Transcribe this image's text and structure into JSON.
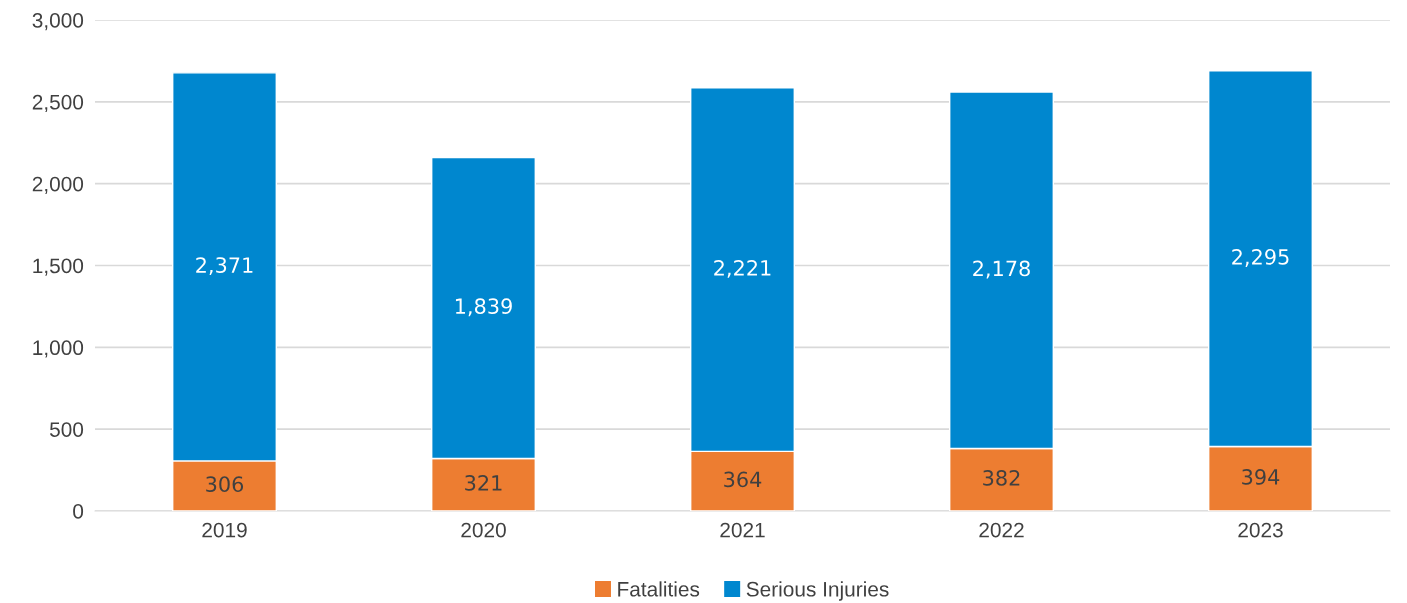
{
  "chart_data": {
    "type": "bar",
    "stacked": true,
    "categories": [
      "2019",
      "2020",
      "2021",
      "2022",
      "2023"
    ],
    "series": [
      {
        "name": "Fatalities",
        "color": "#ed7d31",
        "values": [
          306,
          321,
          364,
          382,
          394
        ],
        "value_labels": [
          "306",
          "321",
          "364",
          "382",
          "394"
        ]
      },
      {
        "name": "Serious Injuries",
        "color": "#0087cf",
        "values": [
          2371,
          1839,
          2221,
          2178,
          2295
        ],
        "value_labels": [
          "2,371",
          "1,839",
          "2,221",
          "2,178",
          "2,295"
        ]
      }
    ],
    "ylim": [
      0,
      3000
    ],
    "yticks": [
      {
        "value": 0,
        "label": "0"
      },
      {
        "value": 500,
        "label": "500"
      },
      {
        "value": 1000,
        "label": "1,000"
      },
      {
        "value": 1500,
        "label": "1,500"
      },
      {
        "value": 2000,
        "label": "2,000"
      },
      {
        "value": 2500,
        "label": "2,500"
      },
      {
        "value": 3000,
        "label": "3,000"
      }
    ],
    "grid": "y",
    "legend": "bottom"
  }
}
